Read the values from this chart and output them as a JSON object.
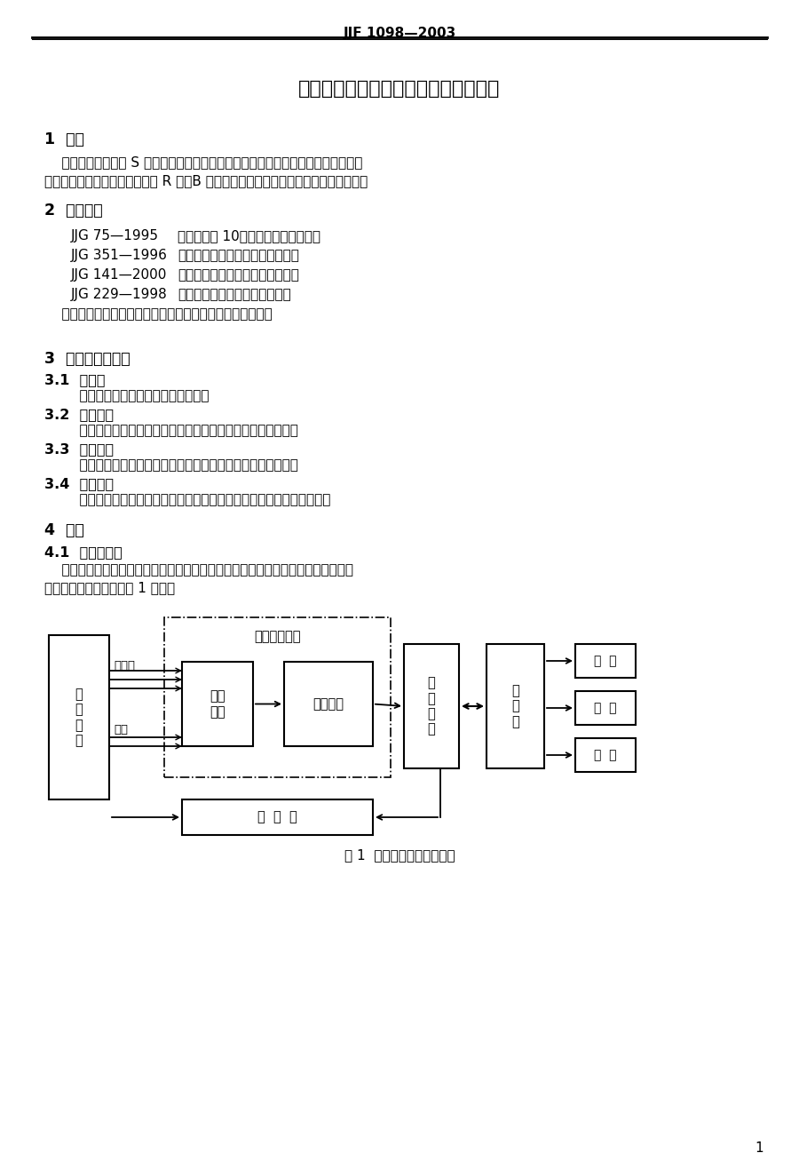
{
  "header": "JJF 1098—2003",
  "title": "热电偏、热电阻自动测量系统校准规范",
  "s1_head": "1  范围",
  "s1_l1": "    本校准规范适用于 S 型二等标准热电偏、工作用热电偏和工业热电阻自动测量系统",
  "s1_l2": "（以下简称系统）的校准。对于 R 型、B 型标准热电偏测量系统的校准也可参照执行。",
  "s2_head": "2  引用文献",
  "refs": [
    [
      "JJG 75—1995",
      "《标准钓钓 10－钓热电偏检定规程》"
    ],
    [
      "JJG 351—1996",
      "《工作用廉金属热电偏检定规程》"
    ],
    [
      "JJG 141—2000",
      "《工作用贵金属热电偏检定规程》"
    ],
    [
      "JJG 229—1998",
      "《工业钓、铜热电阻检定规程》"
    ]
  ],
  "ref_note": "    使用本规范时，应注意使用上述引用文献的现行有效版本。",
  "s3_head": "3  术语和计量单位",
  "s31_head": "3.1  标准器",
  "s31_body": "    指标准热电偏或标准钓电阻温度计。",
  "s32_head": "3.2  电测仪表",
  "s32_body": "    指用于测量电信号的测量仪表，如电位差计、数字多用表等。",
  "s33_head": "3.3  恒温装置",
  "s33_body": "    泛指用于提供恒定温场的设备，如热电偏检定炉或恒温槽等。",
  "s34_head": "3.4  扫描开关",
  "s34_body": "    指用于切换数据采集通道的装置，又称为多路转换开关或电子扫描器。",
  "s4_head": "4  概述",
  "s41_head": "4.1  系统的组成",
  "s41_l1": "    热电偏、热电阻自动测量系统的种类很多，它可以是一体化的，也可以是由若干部",
  "s41_l2": "件构成的。典型结构如图 1 所示。",
  "fig_caption": "图 1  测量系统的典型结构图",
  "page_num": "1",
  "diag_multidata": "多路数据采集",
  "diag_wenduan": "恒\n温\n装\n置",
  "diag_biaozhun": "标准器",
  "diag_bejiao": "被校",
  "diag_saomiao": "扫描\n开关",
  "diag_diance": "电测仪表",
  "diag_tongxun": "通\n讯\n接\n口",
  "diag_jisuan": "计\n算\n机",
  "diag_kongwen": "控  温  器",
  "diag_xianshi": "显  示",
  "diag_dayin": "打  印",
  "diag_baocun": "保  存"
}
